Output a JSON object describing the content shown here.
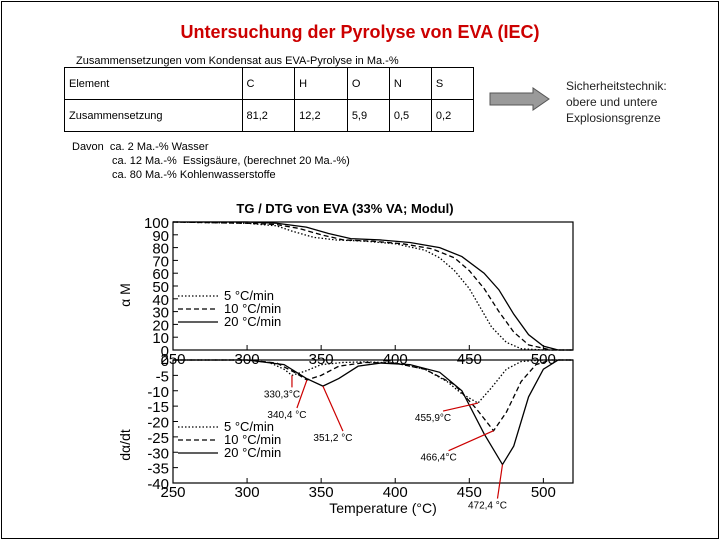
{
  "title": "Untersuchung der Pyrolyse von EVA (IEC)",
  "subtitle": "Zusammensetzungen vom Kondensat aus EVA-Pyrolyse in Ma.-%",
  "table": {
    "header": [
      "Element",
      "C",
      "H",
      "O",
      "N",
      "S"
    ],
    "row": [
      "Zusammensetzung",
      "81,2",
      "12,2",
      "5,9",
      "0,5",
      "0,2"
    ]
  },
  "note": {
    "line1": "Davon  ca. 2 Ma.-% Wasser",
    "line2": "ca. 12 Ma.-%  Essigsäure, (berechnet 20 Ma.-%)",
    "line3": "ca. 80 Ma.-% Kohlenwasserstoffe"
  },
  "sidebar": {
    "line1": "Sicherheitstechnik:",
    "line2": "obere und untere",
    "line3": "Explosionsgrenze"
  },
  "colors": {
    "title": "#cc0000",
    "arrow_fill": "#9a9a9a"
  },
  "chart_data": [
    {
      "type": "line",
      "title": "TG / DTG von EVA (33% VA; Modul)",
      "xlabel": "",
      "ylabel": "α M",
      "xlim": [
        250,
        520
      ],
      "ylim": [
        0,
        100
      ],
      "x_ticks": [
        250,
        300,
        350,
        400,
        450,
        500
      ],
      "y_ticks": [
        0,
        10,
        20,
        30,
        40,
        50,
        60,
        70,
        80,
        90,
        100
      ],
      "legend": "left",
      "series": [
        {
          "name": "5 °C/min",
          "style": "dotted",
          "x": [
            250,
            300,
            320,
            330,
            345,
            360,
            380,
            400,
            420,
            430,
            440,
            450,
            460,
            465,
            475,
            485,
            500,
            520
          ],
          "y": [
            100,
            99,
            97,
            93,
            88,
            86,
            85,
            83,
            78,
            72,
            62,
            48,
            28,
            18,
            6,
            1,
            0,
            0
          ]
        },
        {
          "name": "10 °C/min",
          "style": "dashed",
          "x": [
            250,
            300,
            320,
            335,
            350,
            365,
            385,
            405,
            425,
            440,
            450,
            460,
            470,
            480,
            490,
            505,
            520
          ],
          "y": [
            100,
            99,
            98,
            95,
            90,
            86,
            85,
            83,
            79,
            72,
            62,
            48,
            30,
            14,
            4,
            0,
            0
          ]
        },
        {
          "name": "20 °C/min",
          "style": "solid",
          "x": [
            250,
            300,
            320,
            340,
            355,
            370,
            390,
            410,
            430,
            445,
            460,
            470,
            480,
            490,
            500,
            510,
            520
          ],
          "y": [
            100,
            100,
            99,
            96,
            91,
            87,
            86,
            84,
            80,
            73,
            60,
            47,
            28,
            12,
            3,
            0,
            0
          ]
        }
      ]
    },
    {
      "type": "line",
      "title": "",
      "xlabel": "Temperature (°C)",
      "ylabel": "dα/dt",
      "xlim": [
        250,
        520
      ],
      "ylim": [
        -40,
        0
      ],
      "x_ticks": [
        250,
        300,
        350,
        400,
        450,
        500
      ],
      "y_ticks": [
        0,
        -5,
        -10,
        -15,
        -20,
        -25,
        -30,
        -35,
        -40
      ],
      "legend": "left",
      "series": [
        {
          "name": "5 °C/min",
          "style": "dotted",
          "x": [
            250,
            300,
            315,
            325,
            330.3,
            340,
            350,
            365,
            380,
            400,
            420,
            435,
            445,
            455.9,
            465,
            475,
            485,
            500,
            520
          ],
          "y": [
            0,
            0,
            -0.8,
            -3,
            -5,
            -3.5,
            -1.5,
            -0.8,
            -0.6,
            -1,
            -3,
            -7,
            -11,
            -14,
            -9,
            -3,
            -0.5,
            0,
            0
          ]
        },
        {
          "name": "10 °C/min",
          "style": "dashed",
          "x": [
            250,
            300,
            320,
            332,
            340.4,
            350,
            362,
            380,
            400,
            420,
            440,
            455,
            466.4,
            475,
            485,
            495,
            505,
            520
          ],
          "y": [
            0,
            0,
            -1,
            -4,
            -6.5,
            -5,
            -2,
            -0.8,
            -1,
            -3,
            -8,
            -16,
            -23,
            -17,
            -7,
            -1.5,
            0,
            0
          ]
        },
        {
          "name": "20 °C/min",
          "style": "solid",
          "x": [
            250,
            300,
            325,
            340,
            351.2,
            362,
            375,
            390,
            410,
            430,
            445,
            460,
            472.4,
            480,
            490,
            500,
            510,
            520
          ],
          "y": [
            0,
            0,
            -1.5,
            -6,
            -8.5,
            -6,
            -2,
            -1,
            -1.5,
            -4,
            -10,
            -24,
            -34,
            -28,
            -12,
            -3,
            0,
            0
          ]
        }
      ],
      "annotations": [
        {
          "text": "330,3°C",
          "x": 330.3,
          "y": -5
        },
        {
          "text": "340,4 °C",
          "x": 340.4,
          "y": -6.5
        },
        {
          "text": "351,2 °C",
          "x": 351.2,
          "y": -8.5
        },
        {
          "text": "455,9°C",
          "x": 455.9,
          "y": -14
        },
        {
          "text": "466,4°C",
          "x": 466.4,
          "y": -23
        },
        {
          "text": "472,4 °C",
          "x": 472.4,
          "y": -34
        }
      ]
    }
  ]
}
